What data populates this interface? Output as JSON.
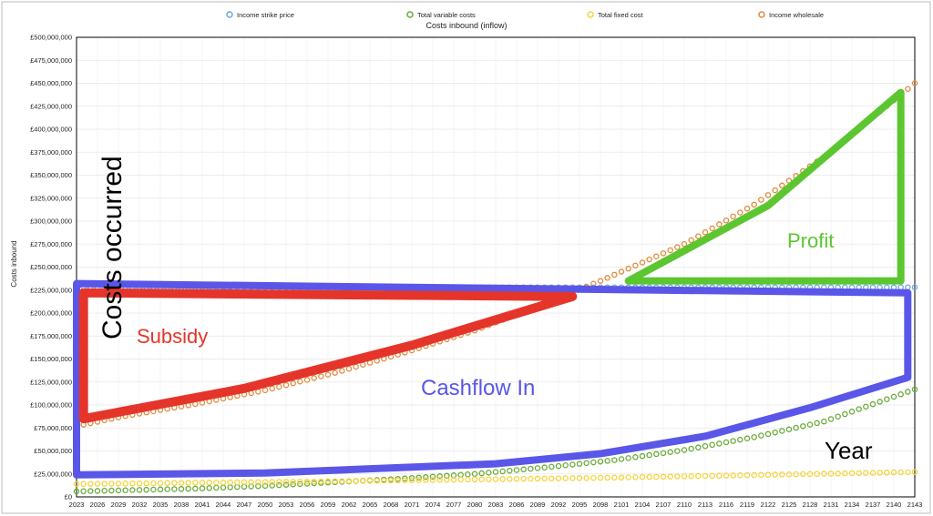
{
  "chart_data": {
    "type": "line",
    "title": "Costs inbound (inflow)",
    "ylabel": "Costs inbound",
    "xlabel": "",
    "ylim": [
      0,
      500000000
    ],
    "y_ticks": [
      "£0",
      "£25,000,000",
      "£50,000,000",
      "£75,000,000",
      "£100,000,000",
      "£125,000,000",
      "£150,000,000",
      "£175,000,000",
      "£200,000,000",
      "£225,000,000",
      "£250,000,000",
      "£275,000,000",
      "£300,000,000",
      "£325,000,000",
      "£350,000,000",
      "£375,000,000",
      "£400,000,000",
      "£425,000,000",
      "£450,000,000",
      "£475,000,000",
      "£500,000,000"
    ],
    "x_ticks": [
      "2023",
      "2026",
      "2029",
      "2032",
      "2035",
      "2038",
      "2041",
      "2044",
      "2047",
      "2050",
      "2053",
      "2056",
      "2059",
      "2062",
      "2065",
      "2068",
      "2071",
      "2074",
      "2077",
      "2080",
      "2083",
      "2086",
      "2089",
      "2092",
      "2095",
      "2098",
      "2101",
      "2104",
      "2107",
      "2110",
      "2113",
      "2116",
      "2119",
      "2122",
      "2125",
      "2128",
      "2131",
      "2134",
      "2137",
      "2140",
      "2143"
    ],
    "x_range": [
      2023,
      2143
    ],
    "grid": true,
    "legend_position": "top",
    "series": [
      {
        "name": "Income strike price",
        "color": "#6fa8e0",
        "points": [
          [
            2023,
            228000000
          ],
          [
            2143,
            228000000
          ]
        ]
      },
      {
        "name": "Total variable costs",
        "color": "#6aaa3a",
        "points": [
          [
            2023,
            6000000
          ],
          [
            2040,
            9000000
          ],
          [
            2050,
            12000000
          ],
          [
            2060,
            16000000
          ],
          [
            2070,
            20000000
          ],
          [
            2080,
            25000000
          ],
          [
            2090,
            32000000
          ],
          [
            2100,
            40000000
          ],
          [
            2110,
            51000000
          ],
          [
            2120,
            65000000
          ],
          [
            2130,
            82000000
          ],
          [
            2143,
            117000000
          ]
        ]
      },
      {
        "name": "Total fixed cost",
        "color": "#f5d33b",
        "points": [
          [
            2023,
            14000000
          ],
          [
            2060,
            17000000
          ],
          [
            2100,
            21000000
          ],
          [
            2143,
            27000000
          ]
        ]
      },
      {
        "name": "Income wholesale",
        "color": "#e08a3c",
        "points": [
          [
            2023,
            77000000
          ],
          [
            2030,
            88000000
          ],
          [
            2040,
            101000000
          ],
          [
            2050,
            116000000
          ],
          [
            2060,
            135000000
          ],
          [
            2070,
            157000000
          ],
          [
            2080,
            181000000
          ],
          [
            2090,
            210000000
          ],
          [
            2098,
            235000000
          ],
          [
            2110,
            275000000
          ],
          [
            2120,
            318000000
          ],
          [
            2130,
            370000000
          ],
          [
            2143,
            450000000
          ]
        ]
      }
    ],
    "annotations": [
      {
        "text": "Costs occurred",
        "color": "#000000"
      },
      {
        "text": "Subsidy",
        "color": "#e5352b"
      },
      {
        "text": "Profit",
        "color": "#5cc630"
      },
      {
        "text": "Cashflow In",
        "color": "#5a56e8"
      },
      {
        "text": "Year",
        "color": "#000000"
      }
    ],
    "overlays": {
      "subsidy": {
        "color": "#e5352b",
        "points": [
          [
            2024,
            222000000
          ],
          [
            2024,
            85000000
          ],
          [
            2047,
            118000000
          ],
          [
            2071,
            165000000
          ],
          [
            2094,
            218000000
          ],
          [
            2024,
            222000000
          ]
        ]
      },
      "profit": {
        "color": "#5cc630",
        "points": [
          [
            2102,
            235000000
          ],
          [
            2122,
            317000000
          ],
          [
            2141,
            440000000
          ],
          [
            2141,
            235000000
          ],
          [
            2102,
            235000000
          ]
        ]
      },
      "cashflow": {
        "color": "#5a56e8",
        "points": [
          [
            2023,
            232000000
          ],
          [
            2142,
            222000000
          ],
          [
            2142,
            130000000
          ],
          [
            2128,
            97000000
          ],
          [
            2113,
            66000000
          ],
          [
            2098,
            47000000
          ],
          [
            2083,
            36000000
          ],
          [
            2050,
            26000000
          ],
          [
            2023,
            24000000
          ],
          [
            2023,
            232000000
          ]
        ]
      }
    }
  }
}
